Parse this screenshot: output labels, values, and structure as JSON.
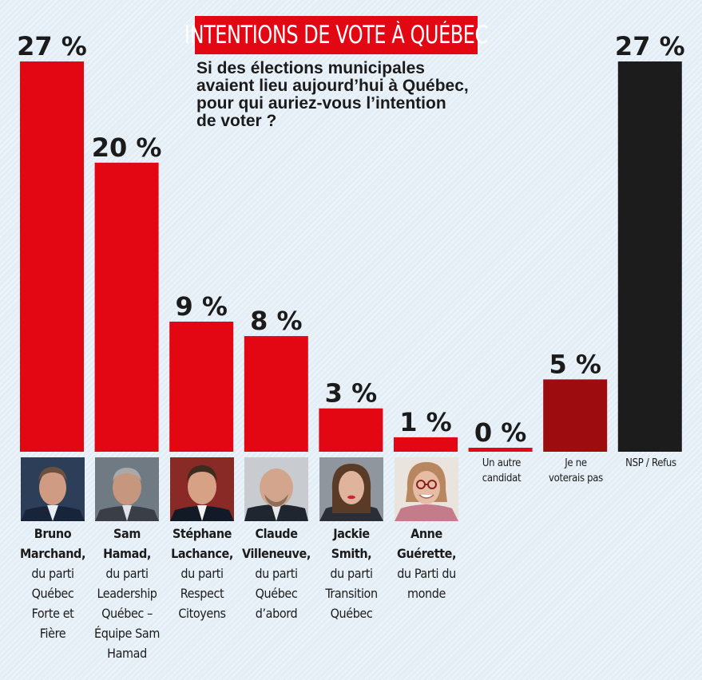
{
  "header": {
    "title": "INTENTIONS DE VOTE À QUÉBEC",
    "subtitle_lines": [
      "Si des élections municipales",
      "avaient lieu aujourd’hui à Québec,",
      "pour qui auriez-vous l’intention",
      "de voter ?"
    ]
  },
  "chart_data": {
    "type": "bar",
    "categories": [
      "Bruno Marchand",
      "Sam Hamad",
      "Stéphane Lachance",
      "Claude Villeneuve",
      "Jackie Smith",
      "Anne Guérette",
      "Un autre candidat",
      "Je ne voterais pas",
      "NSP / Refus"
    ],
    "values": [
      27,
      20,
      9,
      8,
      3,
      1,
      0,
      5,
      27
    ],
    "value_labels": [
      "27 %",
      "20 %",
      "9 %",
      "8 %",
      "3 %",
      "1 %",
      "0 %",
      "5 %",
      "27 %"
    ],
    "unit": "%",
    "ylim": [
      0,
      27
    ],
    "grid": false,
    "legend": "none",
    "colors": [
      "#e30613",
      "#e30613",
      "#e30613",
      "#e30613",
      "#e30613",
      "#e30613",
      "#e30613",
      "#9d0c0e",
      "#1c1c1c"
    ]
  },
  "candidates": [
    {
      "name_lines": [
        "Bruno",
        "Marchand,"
      ],
      "party_lines": [
        "du parti",
        "Québec",
        "Forte et",
        "Fière"
      ],
      "photo": "photo-bruno-marchand"
    },
    {
      "name_lines": [
        "Sam",
        "Hamad,"
      ],
      "party_lines": [
        "du parti",
        "Leadership",
        "Québec –",
        "Équipe Sam",
        "Hamad"
      ],
      "photo": "photo-sam-hamad"
    },
    {
      "name_lines": [
        "Stéphane",
        "Lachance,"
      ],
      "party_lines": [
        "du parti",
        "Respect",
        "Citoyens"
      ],
      "photo": "photo-stephane-lachance"
    },
    {
      "name_lines": [
        "Claude",
        "Villeneuve,"
      ],
      "party_lines": [
        "du parti",
        "Québec",
        "d’abord"
      ],
      "photo": "photo-claude-villeneuve"
    },
    {
      "name_lines": [
        "Jackie",
        "Smith,"
      ],
      "party_lines": [
        "du parti",
        "Transition",
        "Québec"
      ],
      "photo": "photo-jackie-smith"
    },
    {
      "name_lines": [
        "Anne",
        "Guérette,"
      ],
      "party_lines": [
        "du Parti du",
        "monde"
      ],
      "photo": "photo-anne-guerette"
    }
  ],
  "other_labels": [
    {
      "lines": [
        "Un autre",
        "candidat"
      ]
    },
    {
      "lines": [
        "Je ne",
        "voterais pas"
      ]
    },
    {
      "lines": [
        "NSP / Refus"
      ]
    }
  ]
}
